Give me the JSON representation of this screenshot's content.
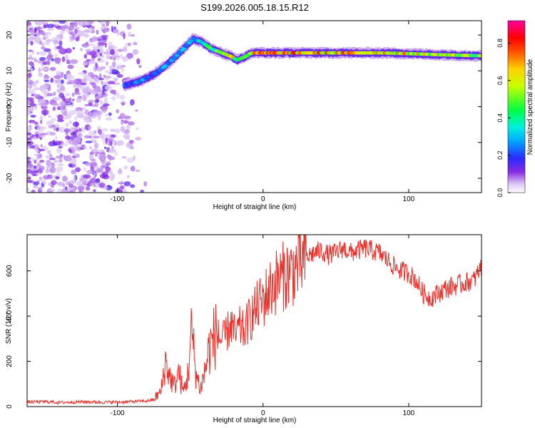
{
  "title": "S199.2026.005.18.15.R12",
  "colors": {
    "snr_line": "#e8302a",
    "frame": "#000000",
    "background": "#ffffff"
  },
  "chart_data": [
    {
      "type": "heatmap",
      "xlabel": "Height of straight line (km)",
      "ylabel": "Frequency (Hz)",
      "xlim": [
        -162,
        150
      ],
      "ylim": [
        -24,
        24
      ],
      "xticks": [
        -100,
        0,
        100
      ],
      "xtick_labels": [
        "-100",
        "0",
        "100"
      ],
      "yticks": [
        -20,
        -10,
        0,
        10,
        20
      ],
      "ytick_labels": [
        "-20",
        "-10",
        "0",
        "10",
        "20"
      ],
      "colorbar": {
        "label": "Normalized spectral amplitude",
        "range": [
          0,
          0.92
        ],
        "ticks": [
          0.0,
          0.2,
          0.4,
          0.6,
          0.8
        ],
        "tick_labels": [
          "0.0",
          "0.2",
          "0.4",
          "0.6",
          "0.8"
        ],
        "colormap": "rainbow (white-violet-blue-cyan-green-yellow-red-magenta)"
      },
      "dominant_ridge": {
        "x": [
          -95,
          -85,
          -75,
          -65,
          -55,
          -48,
          -42,
          -35,
          -28,
          -22,
          -18,
          -12,
          -8,
          0,
          20,
          50,
          80,
          100,
          120,
          150
        ],
        "frequency": [
          6,
          7,
          9,
          12,
          16,
          19,
          18,
          16,
          15,
          14,
          13,
          14,
          15,
          15,
          15,
          15,
          15,
          14.8,
          14.5,
          14.2
        ],
        "peak_amplitude": [
          0.25,
          0.3,
          0.3,
          0.35,
          0.35,
          0.35,
          0.45,
          0.55,
          0.75,
          0.8,
          0.6,
          0.65,
          0.75,
          0.88,
          0.85,
          0.8,
          0.85,
          0.75,
          0.7,
          0.65
        ]
      },
      "noise_region_x": [
        -162,
        -80
      ]
    },
    {
      "type": "line",
      "xlabel": "Height of straight line (km)",
      "ylabel": "SNR (10 * v/v)",
      "xlim": [
        -162,
        150
      ],
      "ylim": [
        0,
        760
      ],
      "xticks": [
        -100,
        0,
        100
      ],
      "xtick_labels": [
        "-100",
        "0",
        "100"
      ],
      "yticks": [
        0,
        200,
        400,
        600
      ],
      "ytick_labels": [
        "0",
        "200",
        "400",
        "600"
      ],
      "series": [
        {
          "x": [
            -162,
            -150,
            -140,
            -130,
            -120,
            -110,
            -100,
            -90,
            -80,
            -75,
            -70,
            -67,
            -64,
            -61,
            -58,
            -55,
            -52,
            -49,
            -46,
            -43,
            -40,
            -37,
            -34,
            -31,
            -28,
            -25,
            -22,
            -19,
            -16,
            -13,
            -10,
            -7,
            -4,
            0,
            5,
            10,
            15,
            20,
            25,
            30,
            35,
            40,
            45,
            50,
            55,
            60,
            65,
            70,
            75,
            80,
            85,
            90,
            95,
            100,
            105,
            110,
            115,
            120,
            125,
            130,
            135,
            140,
            145,
            150
          ],
          "values": [
            20,
            22,
            18,
            20,
            21,
            19,
            20,
            22,
            25,
            30,
            60,
            180,
            120,
            80,
            140,
            60,
            110,
            300,
            130,
            70,
            140,
            230,
            270,
            300,
            290,
            320,
            370,
            310,
            350,
            330,
            380,
            410,
            440,
            470,
            520,
            560,
            580,
            600,
            630,
            660,
            680,
            690,
            670,
            680,
            700,
            680,
            690,
            700,
            690,
            680,
            650,
            620,
            600,
            590,
            560,
            500,
            480,
            500,
            520,
            530,
            540,
            550,
            560,
            620
          ]
        }
      ]
    }
  ]
}
